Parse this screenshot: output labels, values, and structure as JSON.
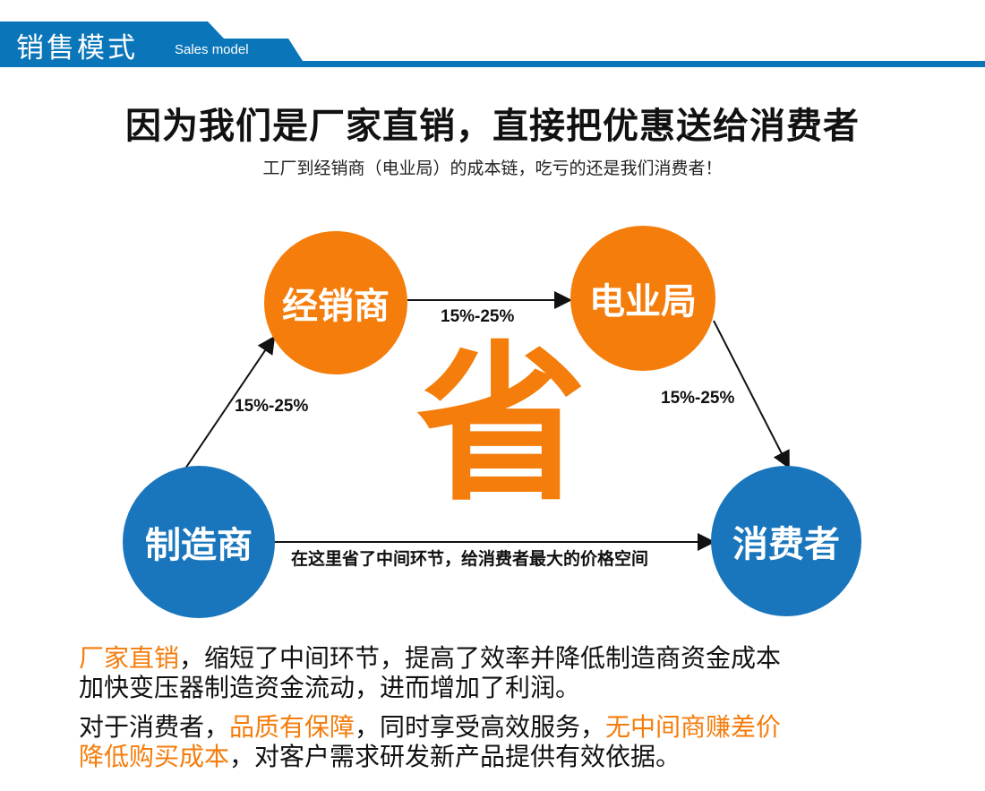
{
  "header": {
    "title": "销售模式",
    "subtitle": "Sales model",
    "color": "#0a76b9"
  },
  "headline": "因为我们是厂家直销，直接把优惠送给消费者",
  "subheadline": "工厂到经销商（电业局）的成本链，吃亏的还是我们消费者！",
  "diagram": {
    "nodes": {
      "dealer": "经销商",
      "power_bureau": "电业局",
      "manufacturer": "制造商",
      "consumer": "消费者"
    },
    "edges": {
      "manufacturer_to_dealer": "15%-25%",
      "dealer_to_power_bureau": "15%-25%",
      "power_bureau_to_consumer": "15%-25%",
      "manufacturer_to_consumer": "在这里省了中间环节，给消费者最大的价格空间"
    },
    "center_char": "省",
    "colors": {
      "orange": "#f47d0c",
      "blue": "#1a76bc"
    }
  },
  "paragraphs": {
    "p1_hl": "厂家直销",
    "p1_rest": "，缩短了中间环节，提高了效率并降低制造商资金成本",
    "p1_line2": "加快变压器制造资金流动，进而增加了利润。",
    "p2_a": "对于消费者，",
    "p2_hl1": "品质有保障",
    "p2_b": "，同时享受高效服务，",
    "p2_hl2": "无中间商赚差价",
    "p2_hl3": "降低购买成本",
    "p2_c": "，对客户需求研发新产品提供有效依据。"
  }
}
